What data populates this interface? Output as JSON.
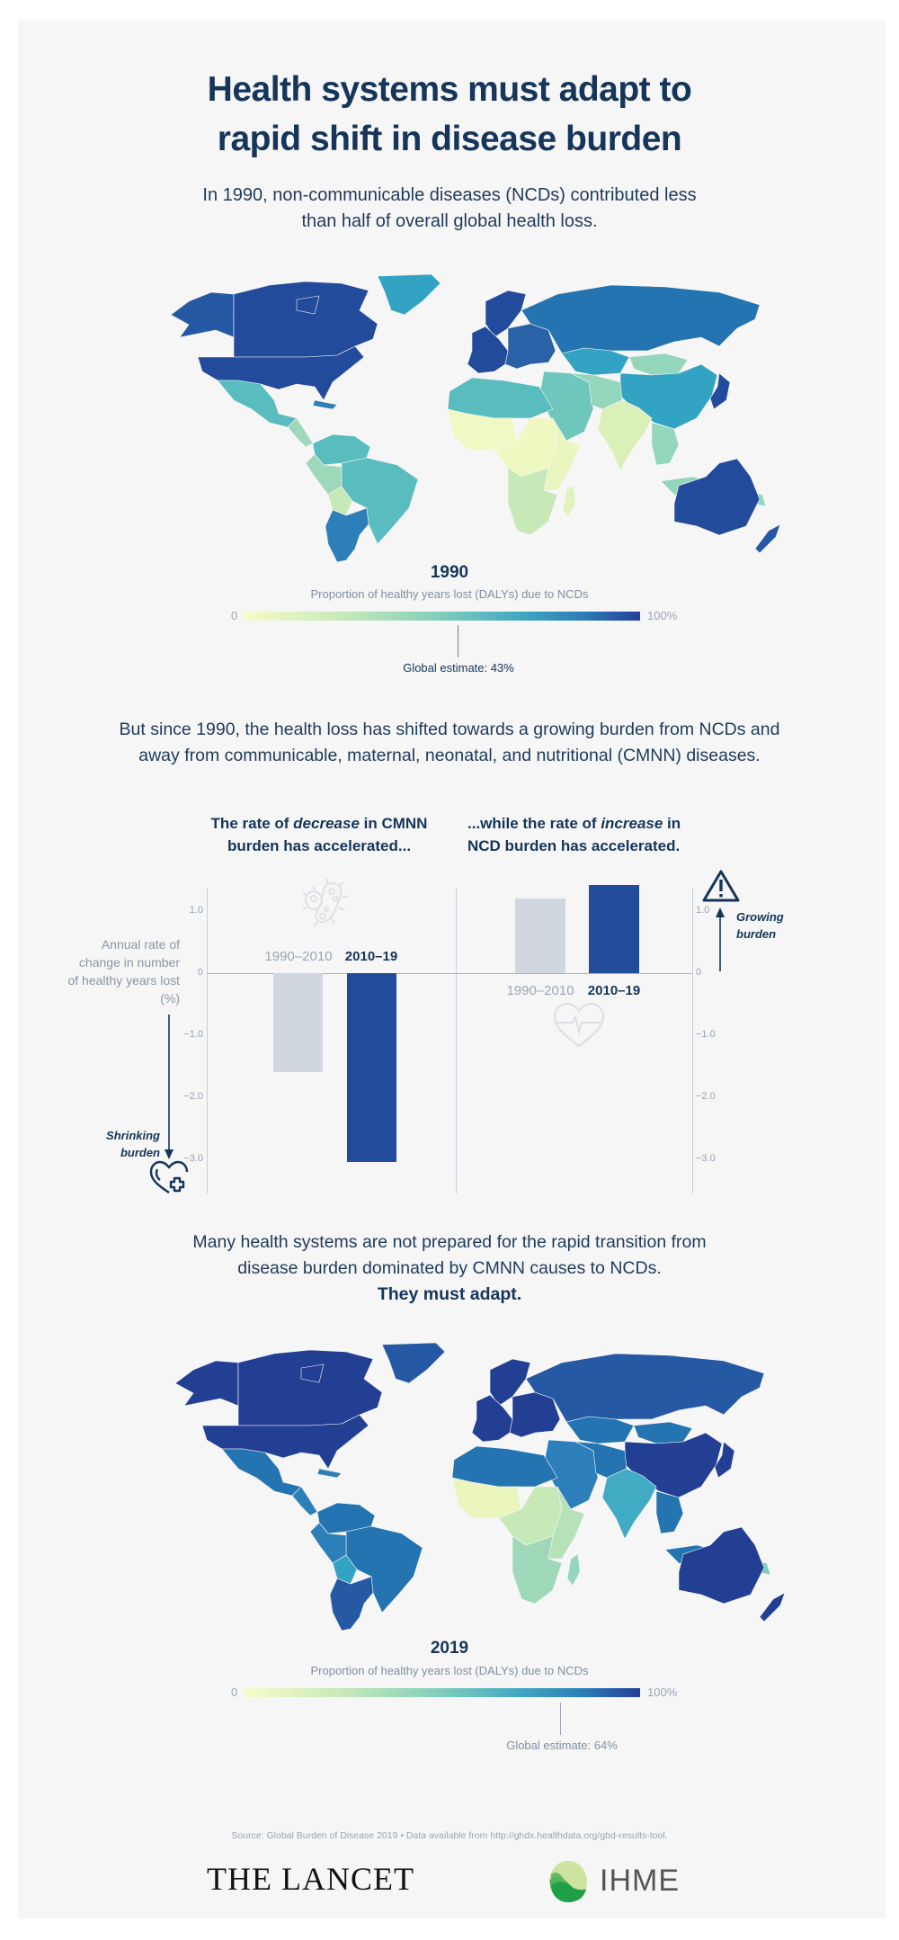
{
  "header": {
    "title_line1": "Health systems must adapt to",
    "title_line2": "rapid shift in disease burden",
    "intro_line1": "In 1990, non-communicable diseases (NCDs) contributed less",
    "intro_line2": "than half of overall global health loss."
  },
  "map1990": {
    "year": "1990",
    "legend_title": "Proportion of healthy years lost (DALYs) due to NCDs",
    "scale_min": "0",
    "scale_max": "100%",
    "global_estimate": "Global estimate: 43%",
    "global_value": 43,
    "colors": {
      "canada": "#234b9c",
      "alaska": "#2659a3",
      "usa": "#234b9c",
      "greenland": "#33a3c4",
      "mexico": "#59bcbf",
      "central_america": "#9fd8b9",
      "caribbean": "#2c7fb8",
      "north_south_america": "#59bcbf",
      "brazil": "#59bcbf",
      "peru_west": "#9fd8b9",
      "bolivia": "#c6e9b7",
      "argentina_chile": "#2c7fb8",
      "western_europe": "#234b9c",
      "scandinavia": "#234b9c",
      "eastern_europe": "#2a62a8",
      "russia": "#2474b1",
      "central_asia": "#33a3c4",
      "mongolia": "#93d6bb",
      "china": "#33a3c4",
      "japan_korea": "#234b9c",
      "north_africa": "#59bcbf",
      "middle_east": "#6ec6bc",
      "iran_afghan": "#93d6bb",
      "south_asia": "#dbf0b8",
      "southeast_asia": "#93d6bb",
      "indonesia": "#93d6bb",
      "sub_saharan_west": "#f0f9c4",
      "sub_saharan_central": "#eff8c1",
      "east_africa": "#eaf6bf",
      "southern_africa": "#c6e9b7",
      "madagascar": "#e0f3bb",
      "australia": "#234b9c",
      "new_zealand": "#2659a3",
      "papua": "#93d6bb"
    }
  },
  "transition": {
    "line1": "But since 1990, the health loss has shifted towards a growing burden from NCDs and",
    "line2": "away from communicable, maternal, neonatal, and nutritional (CMNN) diseases."
  },
  "chart_headings": {
    "left_line1_pre": "The rate of ",
    "left_line1_em": "decrease",
    "left_line1_post": " in CMNN",
    "left_line2": "burden has accelerated...",
    "right_line1_pre": "...while the rate of ",
    "right_line1_em": "increase",
    "right_line1_post": " in",
    "right_line2": "NCD burden has accelerated."
  },
  "chart_labels": {
    "ylabel_line1": "Annual rate of",
    "ylabel_line2": "change in number",
    "ylabel_line3": "of healthy years lost",
    "ylabel_line4": "(%)",
    "ticks": [
      "1.0",
      "0",
      "−1.0",
      "−2.0",
      "−3.0"
    ],
    "shrinking_line1": "Shrinking",
    "shrinking_line2": "burden",
    "growing_line1": "Growing",
    "growing_line2": "burden",
    "period1": "1990–2010",
    "period2": "2010–19"
  },
  "chart_data": {
    "type": "bar",
    "title": "Annual rate of change in number of healthy years lost (%)",
    "ylabel": "Annual rate of change in number of healthy years lost (%)",
    "xlabel": "",
    "categories": [
      "1990–2010",
      "2010–19"
    ],
    "series": [
      {
        "name": "CMNN burden",
        "values": [
          -1.6,
          -3.05
        ]
      },
      {
        "name": "NCD burden",
        "values": [
          1.2,
          1.42
        ]
      }
    ],
    "ylim": [
      -3.5,
      1.5
    ],
    "yticks": [
      1.0,
      0,
      -1.0,
      -2.0,
      -3.0
    ],
    "grid": false,
    "colors": {
      "1990–2010": "#d0d7df",
      "2010–19": "#234b9c"
    },
    "annotations": [
      "Shrinking burden",
      "Growing burden"
    ],
    "maps": [
      {
        "year": 1990,
        "metric": "Proportion of healthy years lost (DALYs) due to NCDs",
        "range": [
          "0",
          "100%"
        ],
        "global_estimate_pct": 43
      },
      {
        "year": 2019,
        "metric": "Proportion of healthy years lost (DALYs) due to NCDs",
        "range": [
          "0",
          "100%"
        ],
        "global_estimate_pct": 64
      }
    ]
  },
  "conclusion": {
    "line1": "Many health systems are not prepared for the rapid transition from",
    "line2": "disease burden dominated by CMNN causes to NCDs.",
    "line3": "They must adapt."
  },
  "map2019": {
    "year": "2019",
    "legend_title": "Proportion of healthy years lost (DALYs) due to NCDs",
    "scale_min": "0",
    "scale_max": "100%",
    "global_estimate": "Global estimate: 64%",
    "global_value": 64,
    "colors": {
      "canada": "#233f94",
      "alaska": "#233f94",
      "usa": "#233f94",
      "greenland": "#2659a3",
      "mexico": "#2474b1",
      "central_america": "#2c7fb8",
      "caribbean": "#2c7fb8",
      "north_south_america": "#2474b1",
      "brazil": "#2474b1",
      "peru_west": "#2c7fb8",
      "bolivia": "#33a3c4",
      "argentina_chile": "#2659a3",
      "western_europe": "#233f94",
      "scandinavia": "#233f94",
      "eastern_europe": "#233f94",
      "russia": "#2659a3",
      "central_asia": "#2474b1",
      "mongolia": "#2474b1",
      "china": "#233f94",
      "japan_korea": "#233f94",
      "north_africa": "#2474b1",
      "middle_east": "#2c7fb8",
      "iran_afghan": "#2474b1",
      "south_asia": "#41abc4",
      "southeast_asia": "#2474b1",
      "indonesia": "#2474b1",
      "sub_saharan_west": "#eaf6bd",
      "sub_saharan_central": "#c6e9b7",
      "east_africa": "#b5e2b8",
      "southern_africa": "#9fd8b9",
      "madagascar": "#93d6bb",
      "australia": "#233f94",
      "new_zealand": "#233f94",
      "papua": "#7fcdbb"
    }
  },
  "footer": {
    "source": "Source: Global Burden of Disease 2019 • Data available from http://ghdx.healthdata.org/gbd-results-tool.",
    "lancet_logo": "THE LANCET",
    "ihme_logo": "IHME"
  }
}
